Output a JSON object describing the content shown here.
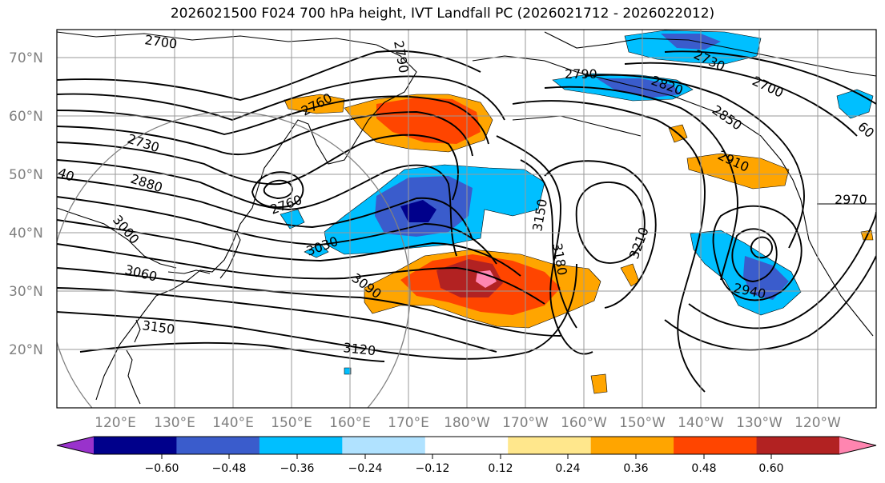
{
  "title": "2026021500 F024 700 hPa height, IVT Landfall PC (2026021712 - 2026022012)",
  "map": {
    "latitude_labels": [
      "70°N",
      "60°N",
      "50°N",
      "40°N",
      "30°N",
      "20°N"
    ],
    "longitude_labels": [
      "120°E",
      "130°E",
      "140°E",
      "150°E",
      "160°E",
      "170°E",
      "180°W",
      "170°W",
      "160°W",
      "150°W",
      "140°W",
      "130°W",
      "120°W"
    ],
    "contour_labels": [
      "2700",
      "2790",
      "2760",
      "2730",
      "2880",
      "3000",
      "3060",
      "3150",
      "2760",
      "3030",
      "3090",
      "3120",
      "3150",
      "3180",
      "3210",
      "2790",
      "2820",
      "2730",
      "2700",
      "2850",
      "2910",
      "2940",
      "2970",
      "40",
      "60"
    ]
  },
  "colorbar": {
    "tick_labels": [
      "−0.60",
      "−0.48",
      "−0.36",
      "−0.24",
      "−0.12",
      "0.12",
      "0.24",
      "0.36",
      "0.48",
      "0.60"
    ],
    "colors": [
      "#9932cc",
      "#00008b",
      "#3a5ccc",
      "#00bfff",
      "#b0e2ff",
      "#ffffff",
      "#ffe78c",
      "#ffa500",
      "#ff4500",
      "#b22222",
      "#ff85b0"
    ]
  }
}
